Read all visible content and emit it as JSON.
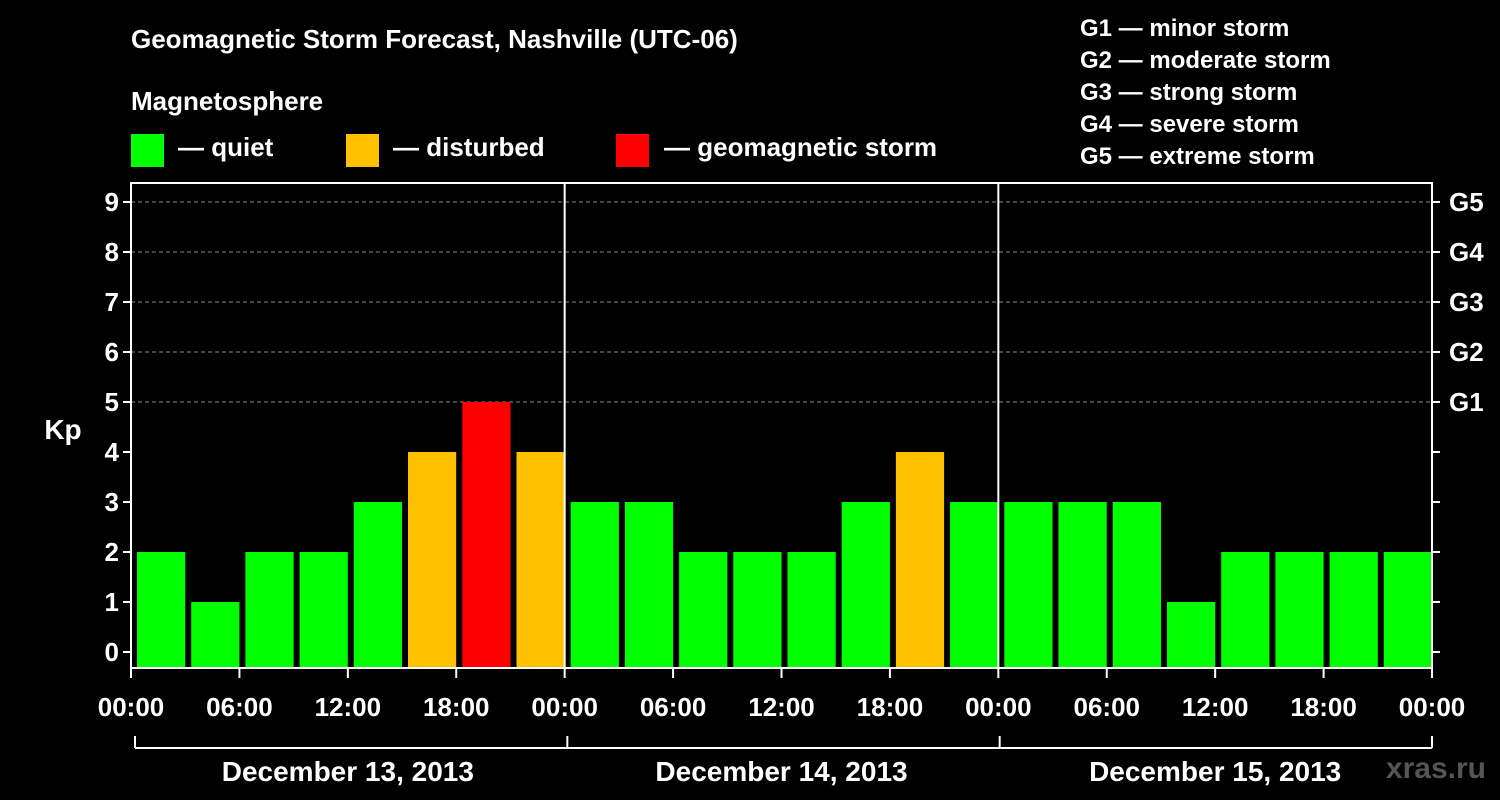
{
  "colors": {
    "quiet": "#00ff00",
    "disturbed": "#ffc000",
    "storm": "#ff0000",
    "background": "#000000",
    "foreground": "#ffffff",
    "grid": "#888888",
    "watermark": "#555555"
  },
  "header": {
    "title": "Geomagnetic Storm Forecast, Nashville (UTC-06)",
    "legend_title": "Magnetosphere"
  },
  "legend": [
    {
      "label": "— quiet",
      "color_key": "quiet"
    },
    {
      "label": "— disturbed",
      "color_key": "disturbed"
    },
    {
      "label": "— geomagnetic storm",
      "color_key": "storm"
    }
  ],
  "storm_scale": [
    "G1 — minor storm",
    "G2 — moderate storm",
    "G3 — strong storm",
    "G4 — severe storm",
    "G5 — extreme storm"
  ],
  "watermark": "xras.ru",
  "chart_data": {
    "type": "bar",
    "title": "Geomagnetic Storm Forecast, Nashville (UTC-06)",
    "ylabel": "Kp",
    "ylim": [
      0,
      9
    ],
    "yticks": [
      "0",
      "1",
      "2",
      "3",
      "4",
      "5",
      "6",
      "7",
      "8",
      "9"
    ],
    "right_ticks": [
      {
        "kp": 5,
        "label": "G1"
      },
      {
        "kp": 6,
        "label": "G2"
      },
      {
        "kp": 7,
        "label": "G3"
      },
      {
        "kp": 8,
        "label": "G4"
      },
      {
        "kp": 9,
        "label": "G5"
      }
    ],
    "grid": "horizontal dashed at Kp 5-9",
    "xticks": [
      "00:00",
      "06:00",
      "12:00",
      "18:00",
      "00:00",
      "06:00",
      "12:00",
      "18:00",
      "00:00",
      "06:00",
      "12:00",
      "18:00",
      "00:00"
    ],
    "days": [
      "December 13, 2013",
      "December 14, 2013",
      "December 15, 2013"
    ],
    "values": [
      2,
      1,
      2,
      2,
      3,
      4,
      5,
      4,
      3,
      3,
      2,
      2,
      2,
      3,
      4,
      3,
      3,
      3,
      3,
      1,
      2,
      2,
      2,
      2
    ],
    "levels": [
      "quiet",
      "quiet",
      "quiet",
      "quiet",
      "quiet",
      "disturbed",
      "storm",
      "disturbed",
      "quiet",
      "quiet",
      "quiet",
      "quiet",
      "quiet",
      "quiet",
      "disturbed",
      "quiet",
      "quiet",
      "quiet",
      "quiet",
      "quiet",
      "quiet",
      "quiet",
      "quiet",
      "quiet"
    ]
  }
}
